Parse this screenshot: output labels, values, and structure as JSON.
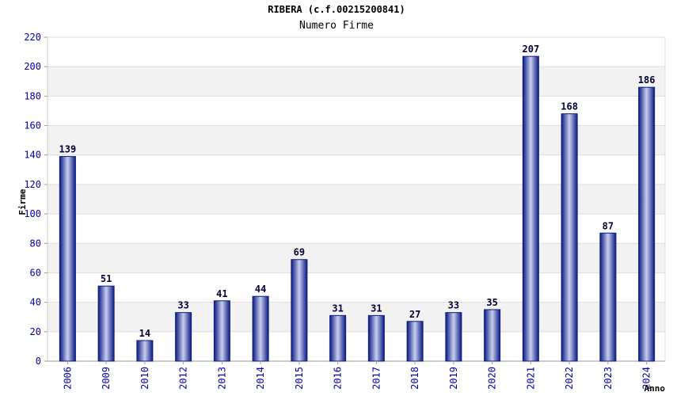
{
  "chart_data": {
    "type": "bar",
    "title": "RIBERA (c.f.00215200841)",
    "subtitle": "Numero Firme",
    "xlabel": "Anno",
    "ylabel": "Firme",
    "categories": [
      "2006",
      "2009",
      "2010",
      "2012",
      "2013",
      "2014",
      "2015",
      "2016",
      "2017",
      "2018",
      "2019",
      "2020",
      "2021",
      "2022",
      "2023",
      "2024"
    ],
    "values": [
      139,
      51,
      14,
      33,
      41,
      44,
      69,
      31,
      31,
      27,
      33,
      35,
      207,
      168,
      87,
      186
    ],
    "ylim": [
      0,
      220
    ],
    "yticks": [
      0,
      20,
      40,
      60,
      80,
      100,
      120,
      140,
      160,
      180,
      200,
      220
    ],
    "grid": true,
    "data_labels": true,
    "colors": {
      "bar_edge": "#0a1a80",
      "bar_center": "#c8cef0",
      "tick_text": "#0000aa",
      "label_text": "#000033",
      "band": "#f2f2f2",
      "gridline": "#dddddd"
    }
  }
}
